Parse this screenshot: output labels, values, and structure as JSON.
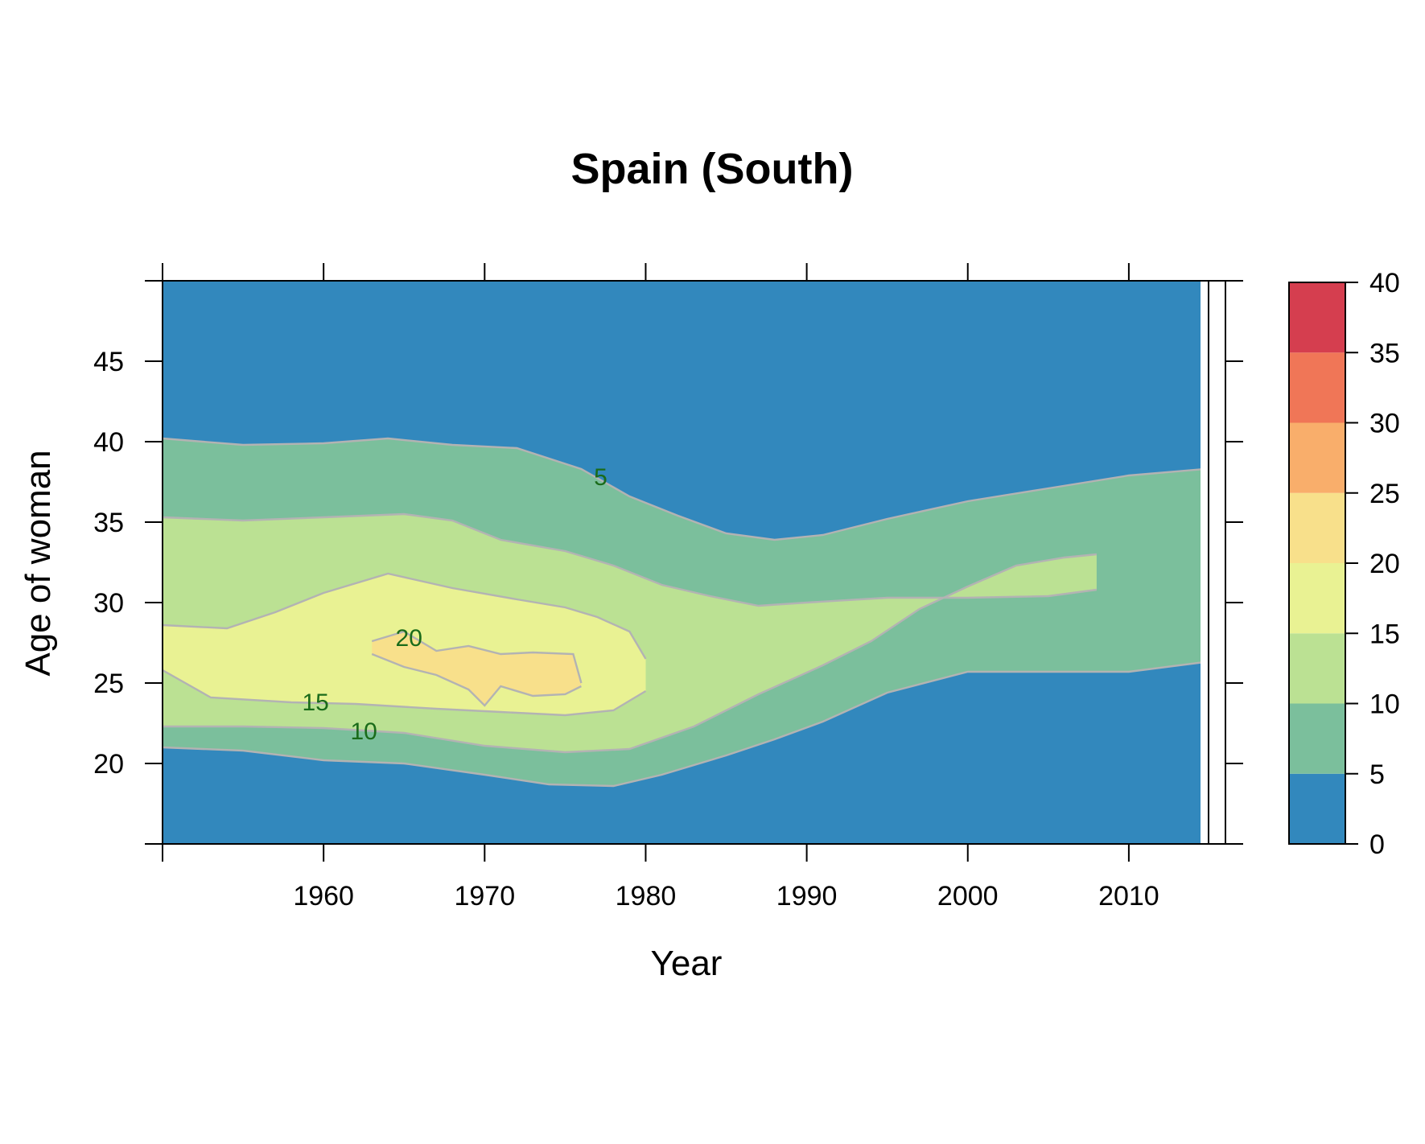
{
  "chart_data": {
    "type": "heatmap",
    "title": "Spain (South)",
    "xlabel": "Year",
    "ylabel": "Age of woman",
    "xlim": [
      1950,
      2016
    ],
    "ylim": [
      15,
      50
    ],
    "x_ticks": [
      1960,
      1970,
      1980,
      1990,
      2000,
      2010
    ],
    "y_ticks": [
      20,
      25,
      30,
      35,
      40,
      45
    ],
    "colorbar": {
      "ticks": [
        0,
        5,
        10,
        15,
        20,
        25,
        30,
        35,
        40
      ],
      "bins": [
        {
          "from": 0,
          "to": 5,
          "color": "#3288bd"
        },
        {
          "from": 5,
          "to": 10,
          "color": "#7bbf9c"
        },
        {
          "from": 10,
          "to": 15,
          "color": "#bbe193"
        },
        {
          "from": 15,
          "to": 20,
          "color": "#e9f293"
        },
        {
          "from": 20,
          "to": 25,
          "color": "#f8e08b"
        },
        {
          "from": 25,
          "to": 30,
          "color": "#f9ae6b"
        },
        {
          "from": 30,
          "to": 35,
          "color": "#f07657"
        },
        {
          "from": 35,
          "to": 40,
          "color": "#d53e4f"
        }
      ]
    },
    "contour_color": "#b3b3b3",
    "contour_labels": [
      {
        "text": "5",
        "x": 1977.2,
        "y": 37.8
      },
      {
        "text": "20",
        "x": 1965.3,
        "y": 27.8
      },
      {
        "text": "15",
        "x": 1959.5,
        "y": 23.8
      },
      {
        "text": "10",
        "x": 1962.5,
        "y": 22.0
      }
    ],
    "bands": [
      {
        "level": 10,
        "color": "#7bbf9c",
        "low": [
          [
            1950,
            21.0
          ],
          [
            1955,
            20.8
          ],
          [
            1960,
            20.2
          ],
          [
            1965,
            20.0
          ],
          [
            1970,
            19.3
          ],
          [
            1974,
            18.7
          ],
          [
            1978,
            18.6
          ],
          [
            1981,
            19.3
          ],
          [
            1985,
            20.5
          ],
          [
            1988,
            21.5
          ],
          [
            1991,
            22.6
          ],
          [
            1995,
            24.4
          ],
          [
            2000,
            25.7
          ],
          [
            2005,
            25.7
          ],
          [
            2010,
            25.7
          ],
          [
            2014.7,
            26.3
          ]
        ],
        "high": [
          [
            1950,
            40.2
          ],
          [
            1955,
            39.8
          ],
          [
            1960,
            39.9
          ],
          [
            1964,
            40.2
          ],
          [
            1968,
            39.8
          ],
          [
            1972,
            39.6
          ],
          [
            1976,
            38.3
          ],
          [
            1979,
            36.6
          ],
          [
            1982,
            35.4
          ],
          [
            1985,
            34.3
          ],
          [
            1988,
            33.9
          ],
          [
            1991,
            34.2
          ],
          [
            1995,
            35.2
          ],
          [
            2000,
            36.3
          ],
          [
            2005,
            37.1
          ],
          [
            2010,
            37.9
          ],
          [
            2014.7,
            38.3
          ]
        ]
      },
      {
        "level": 15,
        "color": "#bbe193",
        "low": [
          [
            1950,
            22.3
          ],
          [
            1955,
            22.3
          ],
          [
            1960,
            22.2
          ],
          [
            1965,
            21.9
          ],
          [
            1970,
            21.1
          ],
          [
            1975,
            20.7
          ],
          [
            1979,
            20.9
          ],
          [
            1983,
            22.3
          ],
          [
            1987,
            24.3
          ],
          [
            1991,
            26.1
          ],
          [
            1994,
            27.6
          ],
          [
            1997,
            29.6
          ],
          [
            2000,
            31.0
          ],
          [
            2003,
            32.3
          ],
          [
            2006,
            32.8
          ],
          [
            2008,
            33.0
          ]
        ],
        "high": [
          [
            1950,
            35.3
          ],
          [
            1955,
            35.1
          ],
          [
            1960,
            35.3
          ],
          [
            1965,
            35.5
          ],
          [
            1968,
            35.1
          ],
          [
            1971,
            33.9
          ],
          [
            1975,
            33.2
          ],
          [
            1978,
            32.3
          ],
          [
            1981,
            31.1
          ],
          [
            1984,
            30.4
          ],
          [
            1987,
            29.8
          ],
          [
            1990,
            30.0
          ],
          [
            1995,
            30.3
          ],
          [
            2000,
            30.3
          ],
          [
            2005,
            30.4
          ],
          [
            2008,
            30.8
          ]
        ]
      },
      {
        "level": 20,
        "color": "#e9f293",
        "low": [
          [
            1950,
            25.8
          ],
          [
            1953,
            24.1
          ],
          [
            1958,
            23.8
          ],
          [
            1962,
            23.7
          ],
          [
            1967,
            23.4
          ],
          [
            1971,
            23.2
          ],
          [
            1975,
            23.0
          ],
          [
            1978,
            23.3
          ],
          [
            1980,
            24.5
          ]
        ],
        "high": [
          [
            1950,
            28.6
          ],
          [
            1954,
            28.4
          ],
          [
            1957,
            29.4
          ],
          [
            1960,
            30.6
          ],
          [
            1964,
            31.8
          ],
          [
            1968,
            30.9
          ],
          [
            1972,
            30.2
          ],
          [
            1975,
            29.7
          ],
          [
            1977,
            29.1
          ],
          [
            1979,
            28.2
          ],
          [
            1980,
            26.5
          ]
        ]
      },
      {
        "level": 25,
        "color": "#f8e08b",
        "low": [
          [
            1963,
            26.8
          ],
          [
            1965,
            26.0
          ],
          [
            1967,
            25.5
          ],
          [
            1969,
            24.6
          ],
          [
            1970,
            23.6
          ],
          [
            1971,
            24.8
          ],
          [
            1973,
            24.2
          ],
          [
            1975,
            24.3
          ],
          [
            1976,
            24.8
          ]
        ],
        "high": [
          [
            1963,
            27.6
          ],
          [
            1965,
            28.2
          ],
          [
            1967,
            27.0
          ],
          [
            1969,
            27.3
          ],
          [
            1971,
            26.8
          ],
          [
            1973,
            26.9
          ],
          [
            1975.5,
            26.8
          ],
          [
            1976,
            25.0
          ]
        ]
      }
    ]
  }
}
